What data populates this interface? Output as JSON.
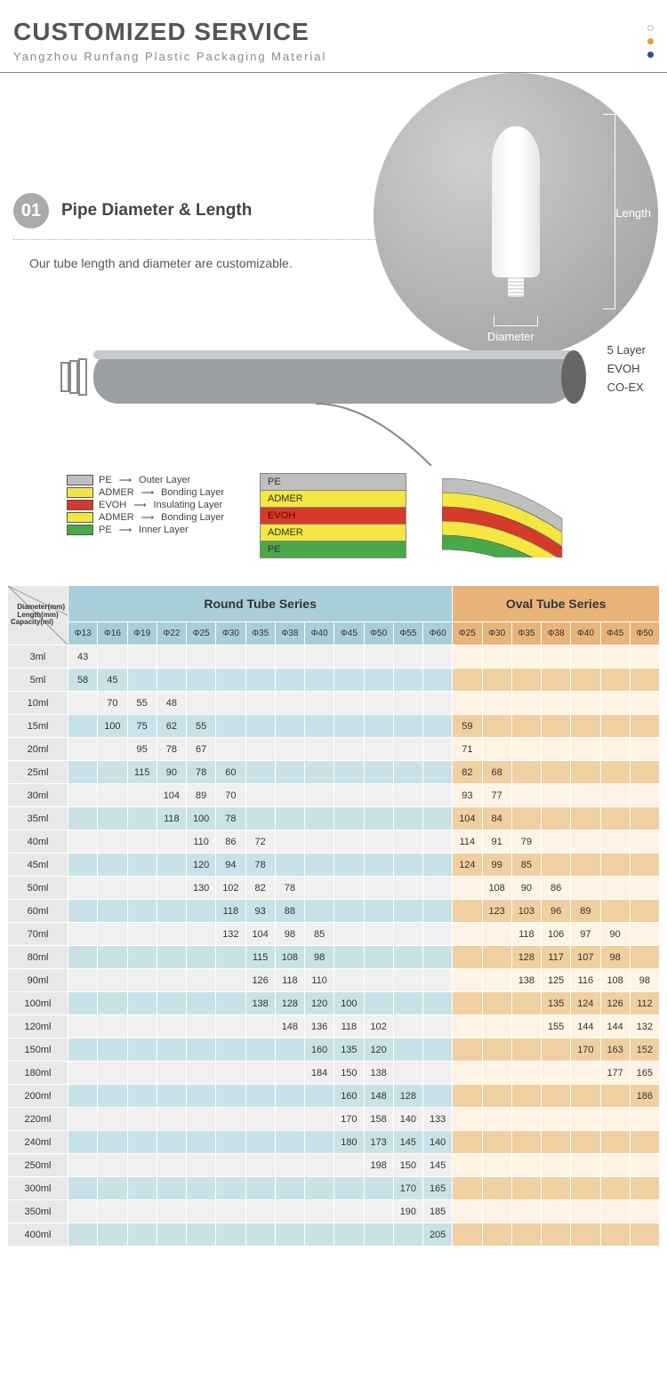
{
  "header": {
    "title": "CUSTOMIZED SERVICE",
    "subtitle": "Yangzhou Runfang Plastic Packaging Material"
  },
  "dots": [
    "#ffffff",
    "#e89a3c",
    "#2a4b9b"
  ],
  "section1": {
    "num": "01",
    "title": "Pipe Diameter & Length",
    "desc": "Our tube length and diameter are customizable.",
    "length_label": "Length",
    "diameter_label": "Diameter"
  },
  "diagram": {
    "side_labels": [
      "5 Layer",
      "EVOH",
      "CO-EX"
    ],
    "layers": [
      {
        "code": "PE",
        "role": "Outer Layer",
        "color": "#bfbfbf"
      },
      {
        "code": "ADMER",
        "role": "Bonding Layer",
        "color": "#f4e742"
      },
      {
        "code": "EVOH",
        "role": "Insulating Layer",
        "color": "#d63a2b"
      },
      {
        "code": "ADMER",
        "role": "Bonding Layer",
        "color": "#f4e742"
      },
      {
        "code": "PE",
        "role": "Inner Layer",
        "color": "#4aa84a"
      }
    ],
    "stack": [
      "PE",
      "ADMER",
      "EVOH",
      "ADMER",
      "PE"
    ],
    "stack_colors": [
      "#bfbfbf",
      "#f4e742",
      "#d63a2b",
      "#f4e742",
      "#4aa84a"
    ]
  },
  "table": {
    "corner_lines": [
      "Diameter(mm)",
      "Length(mm)",
      "Capacity(ml)"
    ],
    "round_header": "Round Tube Series",
    "oval_header": "Oval Tube Series",
    "round_cols": [
      "Φ13",
      "Φ16",
      "Φ19",
      "Φ22",
      "Φ25",
      "Φ30",
      "Φ35",
      "Φ38",
      "Φ40",
      "Φ45",
      "Φ50",
      "Φ55",
      "Φ60"
    ],
    "oval_cols": [
      "Φ25",
      "Φ30",
      "Φ35",
      "Φ38",
      "Φ40",
      "Φ45",
      "Φ50"
    ],
    "rows": [
      {
        "cap": "3ml",
        "r": [
          "43",
          "",
          "",
          "",
          "",
          "",
          "",
          "",
          "",
          "",
          "",
          "",
          ""
        ],
        "o": [
          "",
          "",
          "",
          "",
          "",
          "",
          ""
        ]
      },
      {
        "cap": "5ml",
        "r": [
          "58",
          "45",
          "",
          "",
          "",
          "",
          "",
          "",
          "",
          "",
          "",
          "",
          ""
        ],
        "o": [
          "",
          "",
          "",
          "",
          "",
          "",
          ""
        ]
      },
      {
        "cap": "10ml",
        "r": [
          "",
          "70",
          "55",
          "48",
          "",
          "",
          "",
          "",
          "",
          "",
          "",
          "",
          ""
        ],
        "o": [
          "",
          "",
          "",
          "",
          "",
          "",
          ""
        ]
      },
      {
        "cap": "15ml",
        "r": [
          "",
          "100",
          "75",
          "62",
          "55",
          "",
          "",
          "",
          "",
          "",
          "",
          "",
          ""
        ],
        "o": [
          "59",
          "",
          "",
          "",
          "",
          "",
          ""
        ]
      },
      {
        "cap": "20ml",
        "r": [
          "",
          "",
          "95",
          "78",
          "67",
          "",
          "",
          "",
          "",
          "",
          "",
          "",
          ""
        ],
        "o": [
          "71",
          "",
          "",
          "",
          "",
          "",
          ""
        ]
      },
      {
        "cap": "25ml",
        "r": [
          "",
          "",
          "115",
          "90",
          "78",
          "60",
          "",
          "",
          "",
          "",
          "",
          "",
          ""
        ],
        "o": [
          "82",
          "68",
          "",
          "",
          "",
          "",
          ""
        ]
      },
      {
        "cap": "30ml",
        "r": [
          "",
          "",
          "",
          "104",
          "89",
          "70",
          "",
          "",
          "",
          "",
          "",
          "",
          ""
        ],
        "o": [
          "93",
          "77",
          "",
          "",
          "",
          "",
          ""
        ]
      },
      {
        "cap": "35ml",
        "r": [
          "",
          "",
          "",
          "118",
          "100",
          "78",
          "",
          "",
          "",
          "",
          "",
          "",
          ""
        ],
        "o": [
          "104",
          "84",
          "",
          "",
          "",
          "",
          ""
        ]
      },
      {
        "cap": "40ml",
        "r": [
          "",
          "",
          "",
          "",
          "110",
          "86",
          "72",
          "",
          "",
          "",
          "",
          "",
          ""
        ],
        "o": [
          "114",
          "91",
          "79",
          "",
          "",
          "",
          ""
        ]
      },
      {
        "cap": "45ml",
        "r": [
          "",
          "",
          "",
          "",
          "120",
          "94",
          "78",
          "",
          "",
          "",
          "",
          "",
          ""
        ],
        "o": [
          "124",
          "99",
          "85",
          "",
          "",
          "",
          ""
        ]
      },
      {
        "cap": "50ml",
        "r": [
          "",
          "",
          "",
          "",
          "130",
          "102",
          "82",
          "78",
          "",
          "",
          "",
          "",
          ""
        ],
        "o": [
          "",
          "108",
          "90",
          "86",
          "",
          "",
          ""
        ]
      },
      {
        "cap": "60ml",
        "r": [
          "",
          "",
          "",
          "",
          "",
          "118",
          "93",
          "88",
          "",
          "",
          "",
          "",
          ""
        ],
        "o": [
          "",
          "123",
          "103",
          "96",
          "89",
          "",
          ""
        ]
      },
      {
        "cap": "70ml",
        "r": [
          "",
          "",
          "",
          "",
          "",
          "132",
          "104",
          "98",
          "85",
          "",
          "",
          "",
          ""
        ],
        "o": [
          "",
          "",
          "118",
          "106",
          "97",
          "90",
          ""
        ]
      },
      {
        "cap": "80ml",
        "r": [
          "",
          "",
          "",
          "",
          "",
          "",
          "115",
          "108",
          "98",
          "",
          "",
          "",
          ""
        ],
        "o": [
          "",
          "",
          "128",
          "117",
          "107",
          "98",
          ""
        ]
      },
      {
        "cap": "90ml",
        "r": [
          "",
          "",
          "",
          "",
          "",
          "",
          "126",
          "118",
          "110",
          "",
          "",
          "",
          ""
        ],
        "o": [
          "",
          "",
          "138",
          "125",
          "116",
          "108",
          "98"
        ]
      },
      {
        "cap": "100ml",
        "r": [
          "",
          "",
          "",
          "",
          "",
          "",
          "138",
          "128",
          "120",
          "100",
          "",
          "",
          ""
        ],
        "o": [
          "",
          "",
          "",
          "135",
          "124",
          "126",
          "112"
        ]
      },
      {
        "cap": "120ml",
        "r": [
          "",
          "",
          "",
          "",
          "",
          "",
          "",
          "148",
          "136",
          "118",
          "102",
          "",
          ""
        ],
        "o": [
          "",
          "",
          "",
          "155",
          "144",
          "144",
          "132"
        ]
      },
      {
        "cap": "150ml",
        "r": [
          "",
          "",
          "",
          "",
          "",
          "",
          "",
          "",
          "160",
          "135",
          "120",
          "",
          ""
        ],
        "o": [
          "",
          "",
          "",
          "",
          "170",
          "163",
          "152"
        ]
      },
      {
        "cap": "180ml",
        "r": [
          "",
          "",
          "",
          "",
          "",
          "",
          "",
          "",
          "184",
          "150",
          "138",
          "",
          ""
        ],
        "o": [
          "",
          "",
          "",
          "",
          "",
          "177",
          "165"
        ]
      },
      {
        "cap": "200ml",
        "r": [
          "",
          "",
          "",
          "",
          "",
          "",
          "",
          "",
          "",
          "160",
          "148",
          "128",
          ""
        ],
        "o": [
          "",
          "",
          "",
          "",
          "",
          "",
          "186"
        ]
      },
      {
        "cap": "220ml",
        "r": [
          "",
          "",
          "",
          "",
          "",
          "",
          "",
          "",
          "",
          "170",
          "158",
          "140",
          "133"
        ],
        "o": [
          "",
          "",
          "",
          "",
          "",
          "",
          ""
        ]
      },
      {
        "cap": "240ml",
        "r": [
          "",
          "",
          "",
          "",
          "",
          "",
          "",
          "",
          "",
          "180",
          "173",
          "145",
          "140"
        ],
        "o": [
          "",
          "",
          "",
          "",
          "",
          "",
          ""
        ]
      },
      {
        "cap": "250ml",
        "r": [
          "",
          "",
          "",
          "",
          "",
          "",
          "",
          "",
          "",
          "",
          "198",
          "150",
          "145"
        ],
        "o": [
          "",
          "",
          "",
          "",
          "",
          "",
          ""
        ]
      },
      {
        "cap": "300ml",
        "r": [
          "",
          "",
          "",
          "",
          "",
          "",
          "",
          "",
          "",
          "",
          "",
          "170",
          "165"
        ],
        "o": [
          "",
          "",
          "",
          "",
          "",
          "",
          ""
        ]
      },
      {
        "cap": "350ml",
        "r": [
          "",
          "",
          "",
          "",
          "",
          "",
          "",
          "",
          "",
          "",
          "",
          "190",
          "185"
        ],
        "o": [
          "",
          "",
          "",
          "",
          "",
          "",
          ""
        ]
      },
      {
        "cap": "400ml",
        "r": [
          "",
          "",
          "",
          "",
          "",
          "",
          "",
          "",
          "",
          "",
          "",
          "",
          "205"
        ],
        "o": [
          "",
          "",
          "",
          "",
          "",
          "",
          ""
        ]
      }
    ]
  }
}
